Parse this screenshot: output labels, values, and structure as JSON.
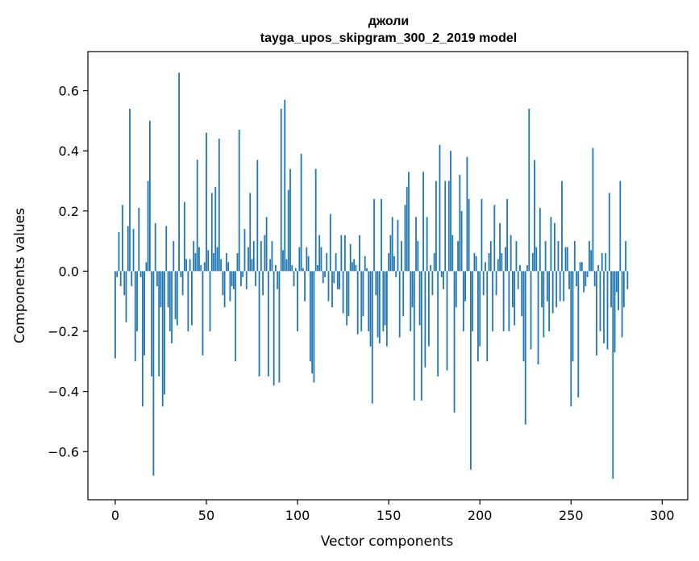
{
  "chart_data": {
    "type": "bar",
    "title": "джоли",
    "subtitle": "tayga_upos_skipgram_300_2_2019 model",
    "xlabel": "Vector components",
    "ylabel": "Components values",
    "xlim": [
      -15,
      314
    ],
    "ylim": [
      -0.76,
      0.73
    ],
    "xticks": [
      0,
      50,
      100,
      150,
      200,
      250,
      300
    ],
    "yticks": [
      -0.6,
      -0.4,
      -0.2,
      0.0,
      0.2,
      0.4,
      0.6
    ],
    "ytick_labels": [
      "−0.6",
      "−0.4",
      "−0.2",
      "0.0",
      "0.2",
      "0.4",
      "0.6"
    ],
    "bar_color": "#1f77b4",
    "grid": false,
    "x_start": 0,
    "values": [
      -0.29,
      -0.02,
      0.13,
      -0.05,
      0.22,
      -0.08,
      -0.17,
      0.15,
      0.54,
      -0.05,
      0.14,
      -0.3,
      -0.2,
      0.21,
      -0.02,
      -0.45,
      -0.28,
      0.03,
      0.3,
      0.5,
      -0.35,
      -0.68,
      0.16,
      -0.05,
      -0.35,
      -0.12,
      -0.45,
      -0.41,
      0.15,
      -0.12,
      -0.2,
      -0.24,
      0.1,
      -0.16,
      -0.18,
      0.66,
      -0.02,
      -0.08,
      0.23,
      0.04,
      -0.2,
      0.04,
      -0.18,
      0.1,
      0.06,
      0.37,
      0.08,
      0.02,
      -0.28,
      0.03,
      0.46,
      0.07,
      -0.2,
      0.26,
      0.06,
      0.28,
      0.08,
      0.44,
      0.04,
      -0.08,
      -0.12,
      0.06,
      0.03,
      -0.1,
      -0.05,
      -0.06,
      -0.3,
      0.06,
      0.47,
      -0.05,
      -0.02,
      0.14,
      -0.06,
      0.08,
      0.26,
      0.04,
      0.1,
      -0.05,
      0.37,
      -0.35,
      0.1,
      -0.08,
      0.12,
      0.18,
      -0.35,
      0.04,
      0.1,
      -0.38,
      0.02,
      -0.06,
      -0.37,
      0.54,
      0.07,
      0.57,
      0.04,
      0.27,
      0.34,
      0.02,
      -0.05,
      0.01,
      -0.2,
      0.08,
      0.39,
      0.01,
      -0.1,
      0.08,
      0.05,
      -0.3,
      -0.34,
      -0.37,
      0.34,
      0.02,
      0.12,
      0.08,
      -0.04,
      -0.02,
      0.06,
      -0.1,
      0.19,
      -0.12,
      -0.04,
      0.06,
      -0.06,
      -0.06,
      0.12,
      -0.14,
      0.12,
      -0.18,
      -0.15,
      0.09,
      0.03,
      0.04,
      0.02,
      -0.21,
      0.12,
      -0.2,
      -0.15,
      0.05,
      0.01,
      -0.2,
      -0.25,
      -0.44,
      0.24,
      -0.08,
      -0.22,
      -0.24,
      0.24,
      -0.2,
      -0.18,
      -0.25,
      0.06,
      0.12,
      0.18,
      0.05,
      -0.02,
      0.17,
      -0.22,
      0.1,
      -0.15,
      0.22,
      0.28,
      0.33,
      -0.2,
      -0.12,
      -0.43,
      0.18,
      0.1,
      -0.18,
      -0.43,
      0.33,
      -0.32,
      0.18,
      -0.25,
      0.02,
      -0.08,
      0.06,
      0.3,
      -0.35,
      0.42,
      -0.02,
      -0.06,
      0.3,
      -0.33,
      0.3,
      0.4,
      0.12,
      -0.47,
      -0.12,
      0.1,
      0.32,
      0.2,
      -0.2,
      -0.1,
      0.38,
      0.24,
      -0.66,
      -0.2,
      0.06,
      0.05,
      -0.3,
      -0.25,
      0.24,
      -0.08,
      0.03,
      -0.3,
      0.06,
      0.1,
      -0.2,
      0.22,
      -0.08,
      0.04,
      0.16,
      0.06,
      -0.2,
      0.08,
      0.24,
      -0.2,
      0.12,
      -0.12,
      -0.18,
      0.1,
      -0.06,
      0.02,
      -0.15,
      -0.3,
      -0.51,
      0.02,
      0.54,
      -0.26,
      0.06,
      0.37,
      0.08,
      -0.31,
      0.21,
      -0.12,
      -0.22,
      0.1,
      -0.1,
      -0.2,
      0.18,
      -0.14,
      0.16,
      -0.12,
      0.1,
      -0.1,
      0.3,
      -0.1,
      0.08,
      0.08,
      -0.06,
      -0.45,
      -0.3,
      0.1,
      -0.05,
      -0.42,
      0.03,
      0.03,
      -0.07,
      -0.05,
      -0.02,
      0.1,
      0.07,
      0.41,
      -0.05,
      -0.28,
      0.02,
      -0.2,
      0.06,
      -0.24,
      0.06,
      -0.26,
      0.26,
      -0.12,
      -0.69,
      -0.27,
      -0.07,
      -0.13,
      0.3,
      -0.22,
      -0.12,
      0.1,
      -0.06
    ]
  }
}
